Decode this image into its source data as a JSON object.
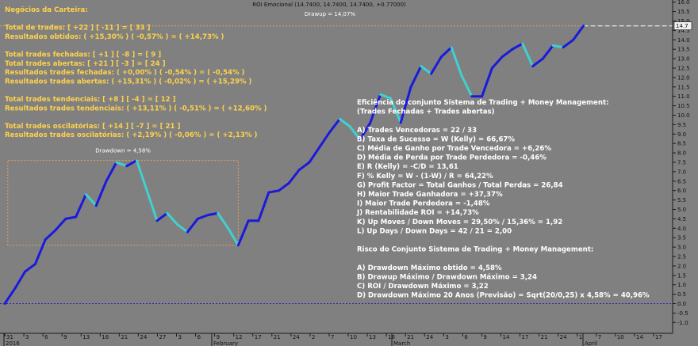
{
  "chart_title": "ROI Emocional (14.7400, 14.7400, 14.7400, +0.77000)",
  "drawup_label": "Drawup = 14,07%",
  "drawdown_label": "Drawdown = 4,58%",
  "colors": {
    "background": "#808080",
    "line_up": "#1a1adc",
    "line_down": "#40d0d0",
    "overlay_text_yellow": "#ffd24a",
    "overlay_text_white": "#ffffff",
    "guide_orange": "#e0a060",
    "zero_line_blue": "#2020c0"
  },
  "overlay_left": [
    "Negócios da Carteira:",
    "",
    "Total de trades: [ +22 ] [ -11 ] = [ 33 ]",
    "Resultados obtidos: ( +15,30% ) ( -0,57% ) = ( +14,73% )",
    "",
    "Total trades fechadas: [ +1 ] [ -8 ] = [ 9 ]",
    "Total trades abertas: [ +21 ] [ -3 ] = [ 24 ]",
    "Resultados trades fechadas: ( +0,00% ) ( -0,54% ) = ( -0,54% )",
    "Resultados trades abertas: ( +15,31% ) ( -0,02% ) = ( +15,29% )",
    "",
    "Total trades tendenciais: [ +8 ] [ -4 ] = [ 12 ]",
    "Resultados trades tendenciais: ( +13,11% ) ( -0,51% ) = ( +12,60% )",
    "",
    "Total trades oscilatórias: [ +14 ] [ -7 ] = [ 21 ]",
    "Resultados trades oscilatórias: ( +2,19% ) ( -0,06% ) = ( +2,13% )"
  ],
  "overlay_right": [
    "Eficiência do conjunto Sistema de Trading + Money Management:",
    "(Trades Fechadas + Trades abertas)",
    "",
    "A) Trades Vencedoras = 22 / 33",
    "B) Taxa de Sucesso = W (Kelly) = 66,67%",
    "C) Média de Ganho por Trade Vencedora = +6,26%",
    "D) Média de Perda por Trade Perdedora = -0,46%",
    "E) R (Kelly) = -C/D = 13,61",
    "F) % Kelly = W - (1-W) / R = 64,22%",
    "G) Profit Factor = Total Ganhos / Total Perdas = 26,84",
    "H) Maior Trade Ganhadora = +37,37%",
    "I) Maior Trade Perdedora = -1,48%",
    "J) Rentabilidade ROI = +14,73%",
    "K) Up Moves / Down Moves = 29,50% / 15,36% = 1,92",
    "L) Up Days / Down Days = 42 / 21 = 2,00",
    "",
    "Risco do Conjunto Sistema de Trading + Money Management:",
    "",
    "A) Drawdown Máximo obtido = 4,58%",
    "B) Drawup Máximo / Drawdown Máximo = 3,24",
    "C) ROI / Drawdown Máximo = 3,22",
    "D) Drawdown Máximo 20 Anos (Previsão) = Sqrt(20/0,25) x 4,58% = 40,96%"
  ],
  "chart_data": {
    "type": "line",
    "series": [
      {
        "name": "ROI Emocional",
        "values": [
          0,
          0.8,
          1.7,
          2.1,
          3.4,
          3.9,
          4.5,
          4.6,
          5.8,
          5.2,
          6.5,
          7.5,
          7.3,
          7.6,
          6.0,
          4.4,
          4.8,
          4.2,
          3.8,
          4.5,
          4.7,
          4.8,
          4.0,
          3.1,
          4.4,
          4.4,
          5.9,
          6.0,
          6.4,
          7.1,
          7.5,
          8.3,
          9.1,
          9.8,
          9.4,
          8.7,
          9.6,
          11.1,
          10.9,
          9.6,
          11.5,
          12.6,
          12.2,
          13.1,
          13.6,
          12.1,
          11.0,
          11.0,
          12.5,
          13.1,
          13.5,
          13.8,
          12.6,
          13.0,
          13.7,
          13.6,
          14.0,
          14.74
        ]
      }
    ],
    "ylim": [
      -1.0,
      16.0
    ],
    "y_ticks": [
      "-1.0",
      "-0.5",
      "0.0",
      "0.5",
      "1.0",
      "1.5",
      "2.0",
      "2.5",
      "3.0",
      "3.5",
      "4.0",
      "4.5",
      "5.0",
      "5.5",
      "6.0",
      "6.5",
      "7.0",
      "7.5",
      "8.0",
      "8.5",
      "9.0",
      "9.5",
      "10.0",
      "10.5",
      "11.0",
      "11.5",
      "12.0",
      "12.5",
      "13.0",
      "13.5",
      "14.0",
      "14.5",
      "15.0",
      "15.5",
      "16.0"
    ],
    "x_tick_labels": [
      "31",
      "3",
      "6",
      "9",
      "13",
      "16",
      "21",
      "24",
      "27",
      "3",
      "6",
      "9",
      "12",
      "17",
      "21",
      "24",
      "2",
      "7",
      "10",
      "13",
      "16",
      "21",
      "24",
      "3",
      "6",
      "9",
      "14",
      "17",
      "21",
      "24",
      "1",
      "7",
      "10",
      "14",
      "17"
    ],
    "x_month_labels": [
      "2016",
      "February",
      "March",
      "April"
    ],
    "last_value": "14.7",
    "drawup_level": 14.74,
    "drawdown_box": {
      "from_index": 11,
      "to_index": 23,
      "top": 7.6,
      "bottom": 3.1
    },
    "zero_line": 0.0,
    "grid": false
  }
}
